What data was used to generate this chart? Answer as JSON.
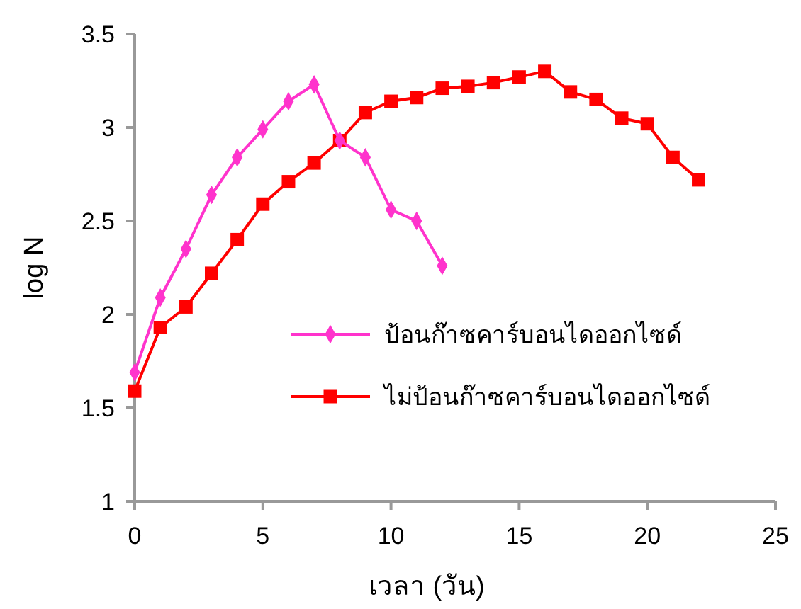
{
  "chart_data": {
    "type": "line",
    "xlabel": "เวลา (วัน)",
    "ylabel": "log N",
    "xlim": [
      0,
      25
    ],
    "xticks": [
      0,
      5,
      10,
      15,
      20,
      25
    ],
    "ylim": [
      1,
      3.5
    ],
    "yticks": [
      1,
      1.5,
      2,
      2.5,
      3,
      3.5
    ],
    "grid": false,
    "legend": "right",
    "line_style": "solid",
    "series": [
      {
        "name": "ป้อนก๊าซคาร์บอนไดออกไซด์",
        "color": "#ff33cc",
        "marker": "diamond",
        "x": [
          0,
          1,
          2,
          3,
          4,
          5,
          6,
          7,
          8,
          9,
          10,
          11,
          12
        ],
        "values": [
          1.69,
          2.09,
          2.35,
          2.64,
          2.84,
          2.99,
          3.14,
          3.23,
          2.93,
          2.84,
          2.56,
          2.5,
          2.26
        ]
      },
      {
        "name": "ไม่ป้อนก๊าซคาร์บอนไดออกไซด์",
        "color": "#ff0000",
        "marker": "square",
        "x": [
          0,
          1,
          2,
          3,
          4,
          5,
          6,
          7,
          8,
          9,
          10,
          11,
          12,
          13,
          14,
          15,
          16,
          17,
          18,
          19,
          20,
          21,
          22
        ],
        "values": [
          1.59,
          1.93,
          2.04,
          2.22,
          2.4,
          2.59,
          2.71,
          2.81,
          2.93,
          3.08,
          3.14,
          3.16,
          3.21,
          3.22,
          3.24,
          3.27,
          3.3,
          3.19,
          3.15,
          3.05,
          3.02,
          2.84,
          2.72
        ]
      }
    ]
  }
}
